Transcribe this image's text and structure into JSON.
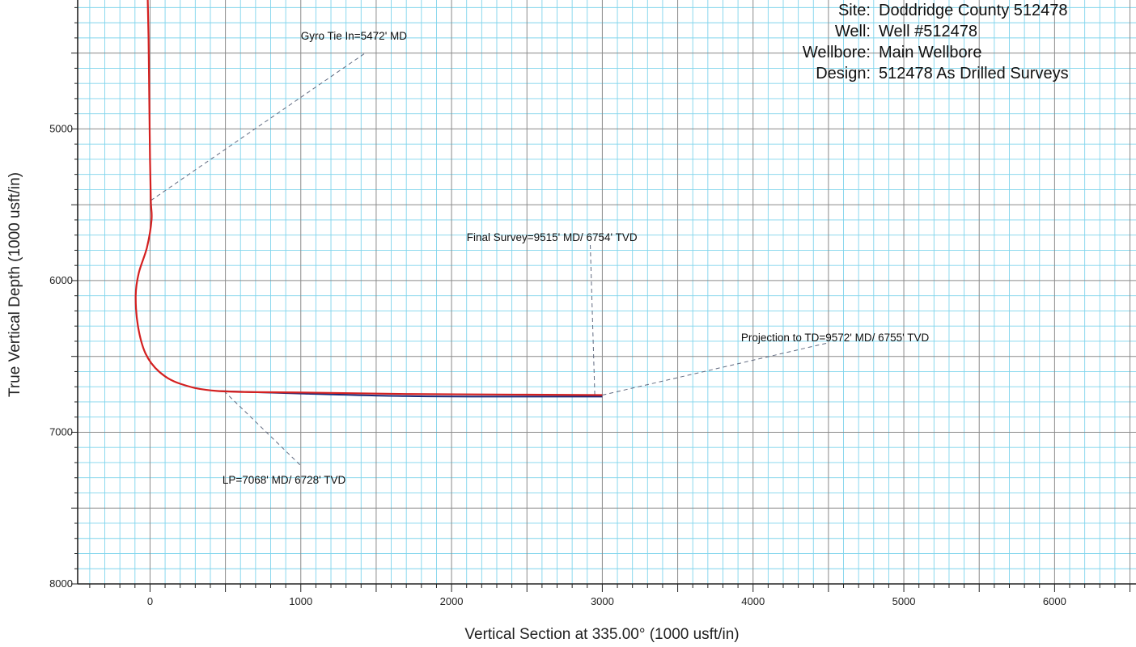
{
  "well_info": [
    {
      "key": "Site:",
      "value": "Doddridge County 512478"
    },
    {
      "key": "Well:",
      "value": "Well #512478"
    },
    {
      "key": "Wellbore:",
      "value": "Main Wellbore"
    },
    {
      "key": "Design:",
      "value": "512478 As Drilled Surveys"
    }
  ],
  "chart_data": {
    "type": "line",
    "xlabel": "Vertical Section at 335.00° (1000 usft/in)",
    "ylabel": "True Vertical Depth (1000 usft/in)",
    "x_ticks": [
      0,
      1000,
      2000,
      3000,
      4000,
      5000,
      6000
    ],
    "y_ticks": [
      5000,
      6000,
      7000,
      8000
    ],
    "xlim": [
      -480,
      6540
    ],
    "ylim": [
      4150,
      8000
    ],
    "y_inverted": true,
    "grid": true,
    "colors": {
      "major_grid": "#8a8a8a",
      "minor_grid": "#7fd4ec",
      "survey": "#d42020",
      "plan": "#1a2a7a",
      "leader": "#606a80"
    },
    "series": [
      {
        "role": "survey",
        "x": [
          -15,
          -10,
          -5,
          0,
          5,
          10,
          -20,
          -75,
          -95,
          -80,
          -30,
          60,
          200,
          450,
          1000,
          1700,
          2500,
          3000
        ],
        "y": [
          4150,
          4400,
          4800,
          5200,
          5472,
          5600,
          5780,
          5950,
          6100,
          6300,
          6480,
          6600,
          6680,
          6728,
          6738,
          6748,
          6752,
          6755
        ]
      },
      {
        "role": "plan",
        "x": [
          450,
          1000,
          1700,
          2500,
          3000
        ],
        "y": [
          6728,
          6745,
          6762,
          6765,
          6765
        ]
      }
    ],
    "annotations": [
      {
        "text": "Gyro Tie In=5472' MD",
        "point": [
          5,
          5472
        ],
        "label_pos": [
          1000,
          4410
        ],
        "leader_end": [
          1420,
          4505
        ]
      },
      {
        "text": "Final Survey=9515' MD/ 6754' TVD",
        "point": [
          2950,
          6752
        ],
        "label_pos": [
          2100,
          5740
        ],
        "leader_end": [
          2920,
          5760
        ]
      },
      {
        "text": "Projection to TD=9572' MD/ 6755' TVD",
        "point": [
          3000,
          6755
        ],
        "label_pos": [
          3920,
          6400
        ],
        "leader_end": [
          4500,
          6410
        ]
      },
      {
        "text": "LP=7068' MD/ 6728' TVD",
        "point": [
          490,
          6728
        ],
        "label_pos": [
          480,
          7340
        ],
        "leader_end": [
          1000,
          7220
        ]
      }
    ]
  }
}
